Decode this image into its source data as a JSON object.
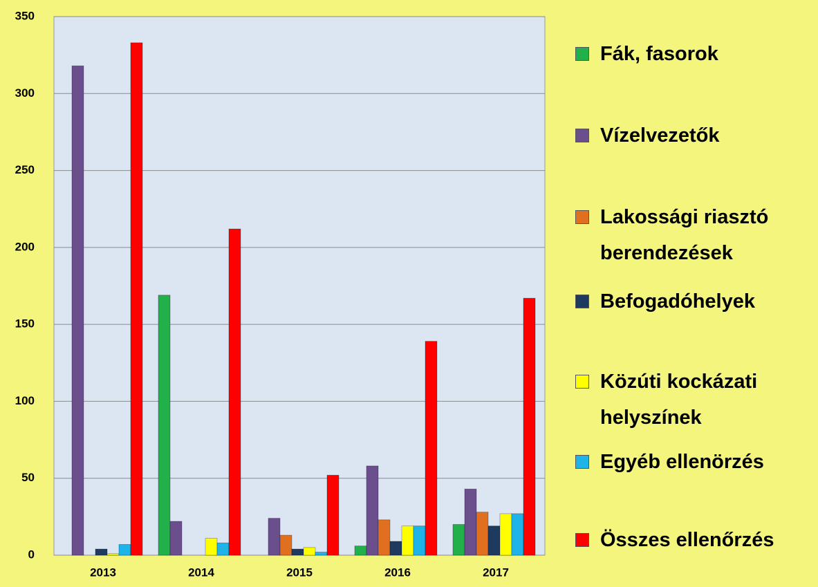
{
  "chart_data": {
    "type": "bar",
    "categories": [
      "2013",
      "2014",
      "2015",
      "2016",
      "2017"
    ],
    "series": [
      {
        "name": "Fák, fasorok",
        "color": "#22b04b",
        "values": [
          0,
          169,
          0,
          6,
          20
        ]
      },
      {
        "name": "Vízelvezetők",
        "color": "#6a4f8c",
        "values": [
          318,
          22,
          24,
          58,
          43
        ]
      },
      {
        "name": "Lakossági riasztó berendezések",
        "color": "#e07020",
        "values": [
          0,
          0,
          13,
          23,
          28
        ]
      },
      {
        "name": "Befogadóhelyek",
        "color": "#1f3a5f",
        "values": [
          4,
          0,
          4,
          9,
          19
        ]
      },
      {
        "name": "Közúti kockázati helyszínek",
        "color": "#ffff00",
        "values": [
          1,
          11,
          5,
          19,
          27
        ]
      },
      {
        "name": "Egyéb ellenörzés",
        "color": "#1fb4e8",
        "values": [
          7,
          8,
          2,
          19,
          27
        ]
      },
      {
        "name": "Összes ellenőrzés",
        "color": "#ff0000",
        "values": [
          333,
          212,
          52,
          139,
          167
        ]
      }
    ],
    "ylim": [
      0,
      350
    ],
    "yticks": [
      0,
      50,
      100,
      150,
      200,
      250,
      300,
      350
    ],
    "grid": true,
    "legend": "right"
  }
}
